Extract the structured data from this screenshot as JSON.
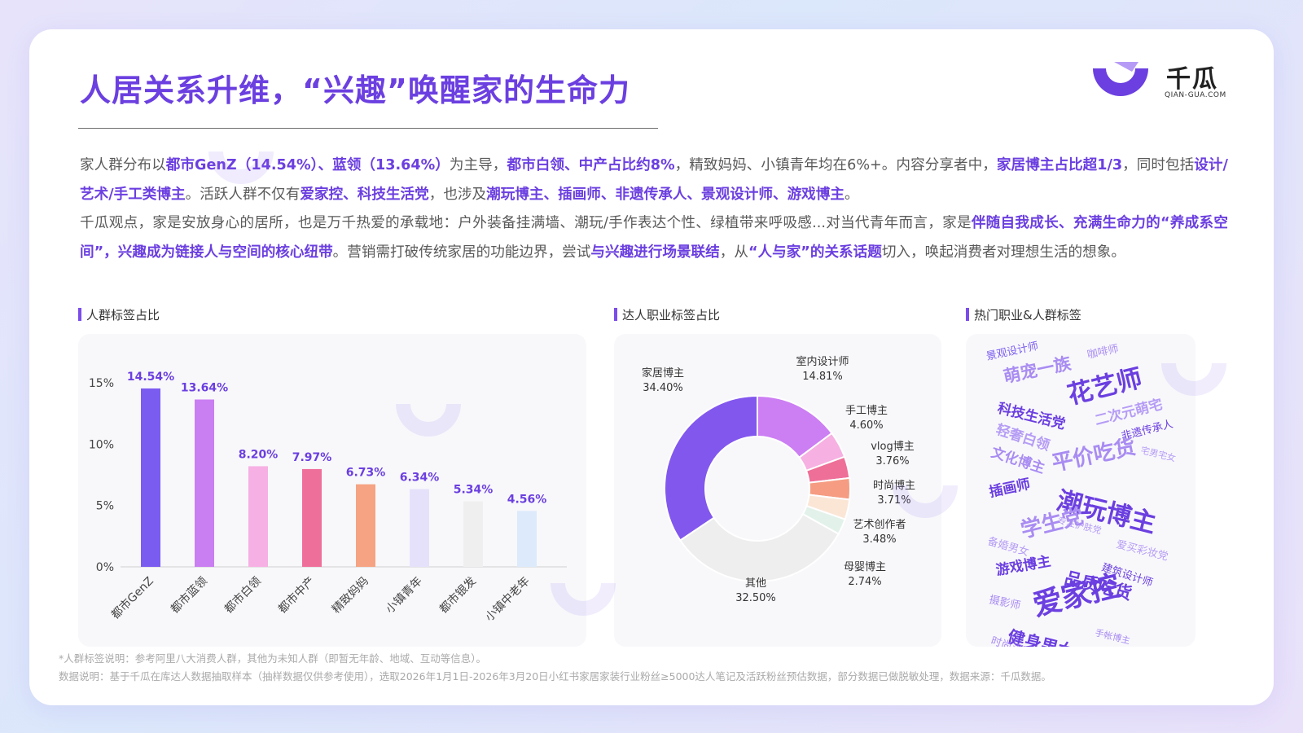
{
  "page": {
    "title": "人居关系升维，“兴趣”唤醒家的生命力",
    "brand": {
      "name": "千瓜",
      "domain": "QIAN-GUA.COM",
      "color": "#6b3fe0"
    },
    "paragraph1": [
      {
        "t": "家人群分布以",
        "h": false
      },
      {
        "t": "都市GenZ（14.54%）、蓝领（13.64%）",
        "h": true
      },
      {
        "t": "为主导，",
        "h": false
      },
      {
        "t": "都市白领、中产占比约8%",
        "h": true
      },
      {
        "t": "，精致妈妈、小镇青年均在6%+。内容分享者中，",
        "h": false
      },
      {
        "t": "家居博主占比超1/3",
        "h": true
      },
      {
        "t": "，同时包括",
        "h": false
      },
      {
        "t": "设计/艺术/手工类博主",
        "h": true
      },
      {
        "t": "。活跃人群不仅有",
        "h": false
      },
      {
        "t": "爱家控、科技生活党",
        "h": true
      },
      {
        "t": "，也涉及",
        "h": false
      },
      {
        "t": "潮玩博主、插画师、非遗传承人、景观设计师、游戏博主",
        "h": true
      },
      {
        "t": "。",
        "h": false
      }
    ],
    "paragraph2": [
      {
        "t": "千瓜观点，家是安放身心的居所，也是万千热爱的承载地：户外装备挂满墙、潮玩/手作表达个性、绿植带来呼吸感...对当代青年而言，家是",
        "h": false
      },
      {
        "t": "伴随自我成长、充满生命力的“养成系空间”，兴趣成为链接人与空间的核心纽带",
        "h": true
      },
      {
        "t": "。营销需打破传统家居的功能边界，尝试",
        "h": false
      },
      {
        "t": "与兴趣进行场景联结",
        "h": true
      },
      {
        "t": "，从",
        "h": false
      },
      {
        "t": "“人与家”的关系话题",
        "h": true
      },
      {
        "t": "切入，唤起消费者对理想生活的想象。",
        "h": false
      }
    ],
    "sections": {
      "bar": "人群标签占比",
      "donut": "达人职业标签占比",
      "cloud": "热门职业&人群标签"
    },
    "notes": {
      "line1": "*人群标签说明：参考阿里八大消费人群，其他为未知人群（即暂无年龄、地域、互动等信息）。",
      "line2": "数据说明：基于千瓜在库达人数据抽取样本（抽样数据仅供参考使用），选取2026年1月1日-2026年3月20日小红书家居家装行业粉丝≥5000达人笔记及活跃粉丝预估数据，部分数据已做脱敏处理，数据来源：千瓜数据。"
    }
  },
  "chart_data": [
    {
      "type": "bar",
      "title": "人群标签占比",
      "categories": [
        "都市GenZ",
        "都市蓝领",
        "都市白领",
        "都市中产",
        "精致妈妈",
        "小镇青年",
        "都市银发",
        "小镇中老年"
      ],
      "values": [
        14.54,
        13.64,
        8.2,
        7.97,
        6.73,
        6.34,
        5.34,
        4.56
      ],
      "value_labels": [
        "14.54%",
        "13.64%",
        "8.20%",
        "7.97%",
        "6.73%",
        "6.34%",
        "5.34%",
        "4.56%"
      ],
      "colors": [
        "#7b5cf0",
        "#c97ef2",
        "#f7b0e3",
        "#ef6f9b",
        "#f5a383",
        "#e6e1fb",
        "#efefef",
        "#ddeafc"
      ],
      "yticks": [
        "0%",
        "5%",
        "10%",
        "15%"
      ],
      "ylim": [
        0,
        15
      ],
      "grid": false
    },
    {
      "type": "pie",
      "style": "donut",
      "title": "达人职业标签占比",
      "slices": [
        {
          "label": "家居博主",
          "value": 34.4,
          "pct": "34.40%",
          "color": "#8257ee"
        },
        {
          "label": "室内设计师",
          "value": 14.81,
          "pct": "14.81%",
          "color": "#cc7ef3"
        },
        {
          "label": "手工博主",
          "value": 4.6,
          "pct": "4.60%",
          "color": "#f6b0e1"
        },
        {
          "label": "vlog博主",
          "value": 3.76,
          "pct": "3.76%",
          "color": "#ee6f98"
        },
        {
          "label": "时尚博主",
          "value": 3.71,
          "pct": "3.71%",
          "color": "#f59c82"
        },
        {
          "label": "艺术创作者",
          "value": 3.48,
          "pct": "3.48%",
          "color": "#fbe6d6"
        },
        {
          "label": "母婴博主",
          "value": 2.74,
          "pct": "2.74%",
          "color": "#e2f2ea"
        },
        {
          "label": "其他",
          "value": 32.5,
          "pct": "32.50%",
          "color": "#eeeeee"
        }
      ]
    }
  ],
  "word_cloud": [
    {
      "text": "景观设计师",
      "weight": 2,
      "color": "#7b5cf0"
    },
    {
      "text": "咖啡师",
      "weight": 2,
      "color": "#a98cf2"
    },
    {
      "text": "萌宠一族",
      "weight": 4,
      "color": "#a98cf2"
    },
    {
      "text": "花艺师",
      "weight": 6,
      "color": "#6b3fe0"
    },
    {
      "text": "科技生活党",
      "weight": 3,
      "color": "#6b3fe0"
    },
    {
      "text": "二次元萌宅",
      "weight": 3,
      "color": "#b59cf5"
    },
    {
      "text": "非遗传承人",
      "weight": 2,
      "color": "#6b3fe0"
    },
    {
      "text": "轻奢白领",
      "weight": 3,
      "color": "#b59cf5"
    },
    {
      "text": "宅男宅女",
      "weight": 1,
      "color": "#b59cf5"
    },
    {
      "text": "平价吃货",
      "weight": 5,
      "color": "#a98cf2"
    },
    {
      "text": "文化博主",
      "weight": 3,
      "color": "#a98cf2"
    },
    {
      "text": "潮玩博主",
      "weight": 6,
      "color": "#6b3fe0"
    },
    {
      "text": "插画师",
      "weight": 3,
      "color": "#6b3fe0"
    },
    {
      "text": "专注护肤党",
      "weight": 1,
      "color": "#b59cf5"
    },
    {
      "text": "学生党",
      "weight": 5,
      "color": "#a98cf2"
    },
    {
      "text": "爱买彩妆党",
      "weight": 2,
      "color": "#b59cf5"
    },
    {
      "text": "备婚男女",
      "weight": 2,
      "color": "#b59cf5"
    },
    {
      "text": "建筑设计师",
      "weight": 2,
      "color": "#6b3fe0"
    },
    {
      "text": "游戏博主",
      "weight": 3,
      "color": "#6b3fe0"
    },
    {
      "text": "品质吃货",
      "weight": 4,
      "color": "#6b3fe0"
    },
    {
      "text": "摄影师",
      "weight": 2,
      "color": "#a98cf2"
    },
    {
      "text": "爱家控",
      "weight": 7,
      "color": "#6b3fe0"
    },
    {
      "text": "健身男女",
      "weight": 4,
      "color": "#6b3fe0"
    },
    {
      "text": "手帐博主",
      "weight": 1,
      "color": "#a98cf2"
    },
    {
      "text": "时尚买手",
      "weight": 2,
      "color": "#a98cf2"
    }
  ]
}
